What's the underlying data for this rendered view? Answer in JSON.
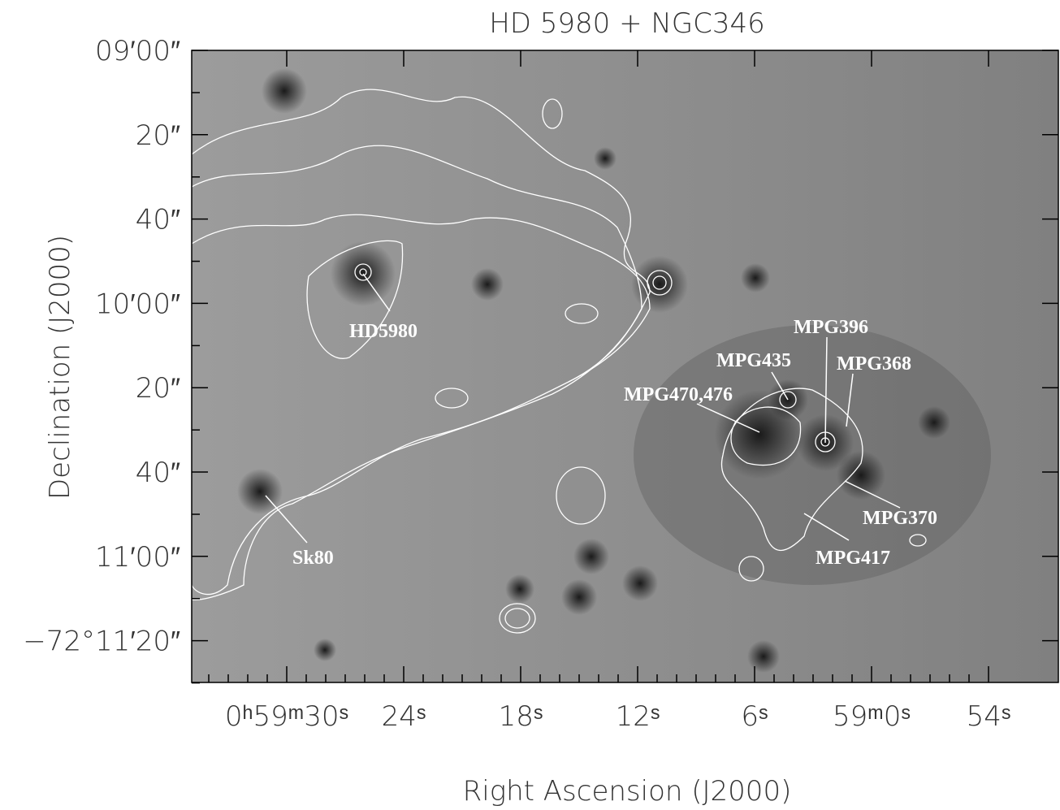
{
  "title": "HD 5980 + NGC346",
  "x_axis": {
    "label": "Right Ascension (J2000)",
    "ticks": [
      "0ʰ59ᵐ30ˢ",
      "24ˢ",
      "18ˢ",
      "12ˢ",
      "6ˢ",
      "59ᵐ0ˢ",
      "54ˢ"
    ]
  },
  "y_axis": {
    "label": "Declination (J2000)",
    "ticks": [
      "09′00″",
      "20″",
      "40″",
      "10′00″",
      "20″",
      "40″",
      "11′00″",
      "−72°11′20″"
    ]
  },
  "annotations": [
    "HD5980",
    "Sk80",
    "MPG470,476",
    "MPG435",
    "MPG396",
    "MPG368",
    "MPG370",
    "MPG417"
  ]
}
